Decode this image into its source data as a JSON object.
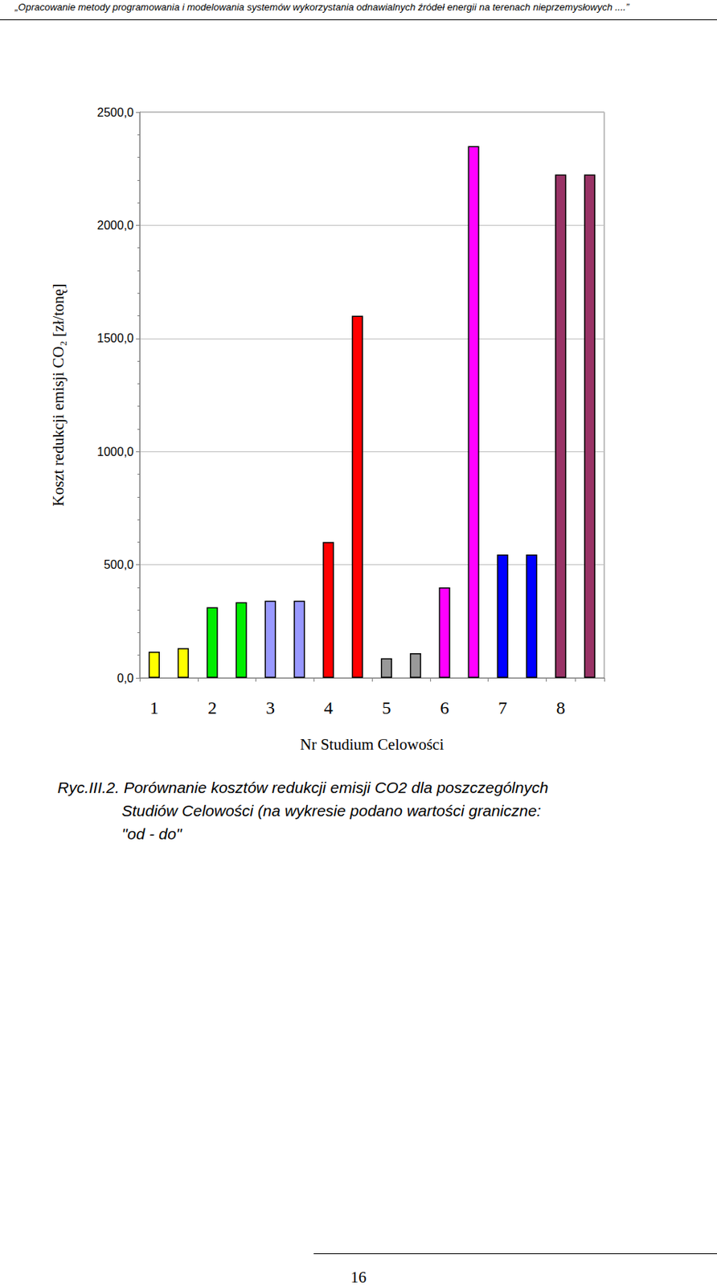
{
  "header": "„Opracowanie metody programowania i modelowania systemów wykorzystania odnawialnych źródeł energii na terenach nieprzemysłowych ....”",
  "chart_data": {
    "type": "bar",
    "x_label": "Nr Studium Celowości",
    "y_label": "Koszt redukcji emisji CO₂ [zł/tonę]",
    "categories": [
      "1",
      null,
      "2",
      null,
      "3",
      null,
      "4",
      null,
      "5",
      null,
      "6",
      null,
      "7",
      null,
      "8",
      null
    ],
    "values": [
      116,
      131,
      312,
      334,
      341,
      341,
      600,
      1600,
      87,
      109,
      400,
      2350,
      545,
      545,
      2224,
      2224
    ],
    "colors": [
      "#ffff00",
      "#ffff00",
      "#00ee00",
      "#00ee00",
      "#9999ff",
      "#9999ff",
      "#ff0000",
      "#ff0000",
      "#999999",
      "#999999",
      "#ff00ff",
      "#ff00ff",
      "#0000ff",
      "#0000ff",
      "#993366",
      "#993366"
    ],
    "ylim": [
      0,
      2500
    ],
    "yticks": [
      {
        "value": 0,
        "label": "0,0"
      },
      {
        "value": 500,
        "label": "500,0"
      },
      {
        "value": 1000,
        "label": "1000,0"
      },
      {
        "value": 1500,
        "label": "1500,0"
      },
      {
        "value": 2000,
        "label": "2000,0"
      },
      {
        "value": 2500,
        "label": "2500,0"
      }
    ],
    "grid": true
  },
  "caption": [
    "Ryc.III.2. Porównanie kosztów redukcji emisji CO2 dla poszczególnych",
    "Studiów Celowości (na wykresie podano wartości graniczne:",
    "\"od - do\""
  ],
  "page_number": "16"
}
